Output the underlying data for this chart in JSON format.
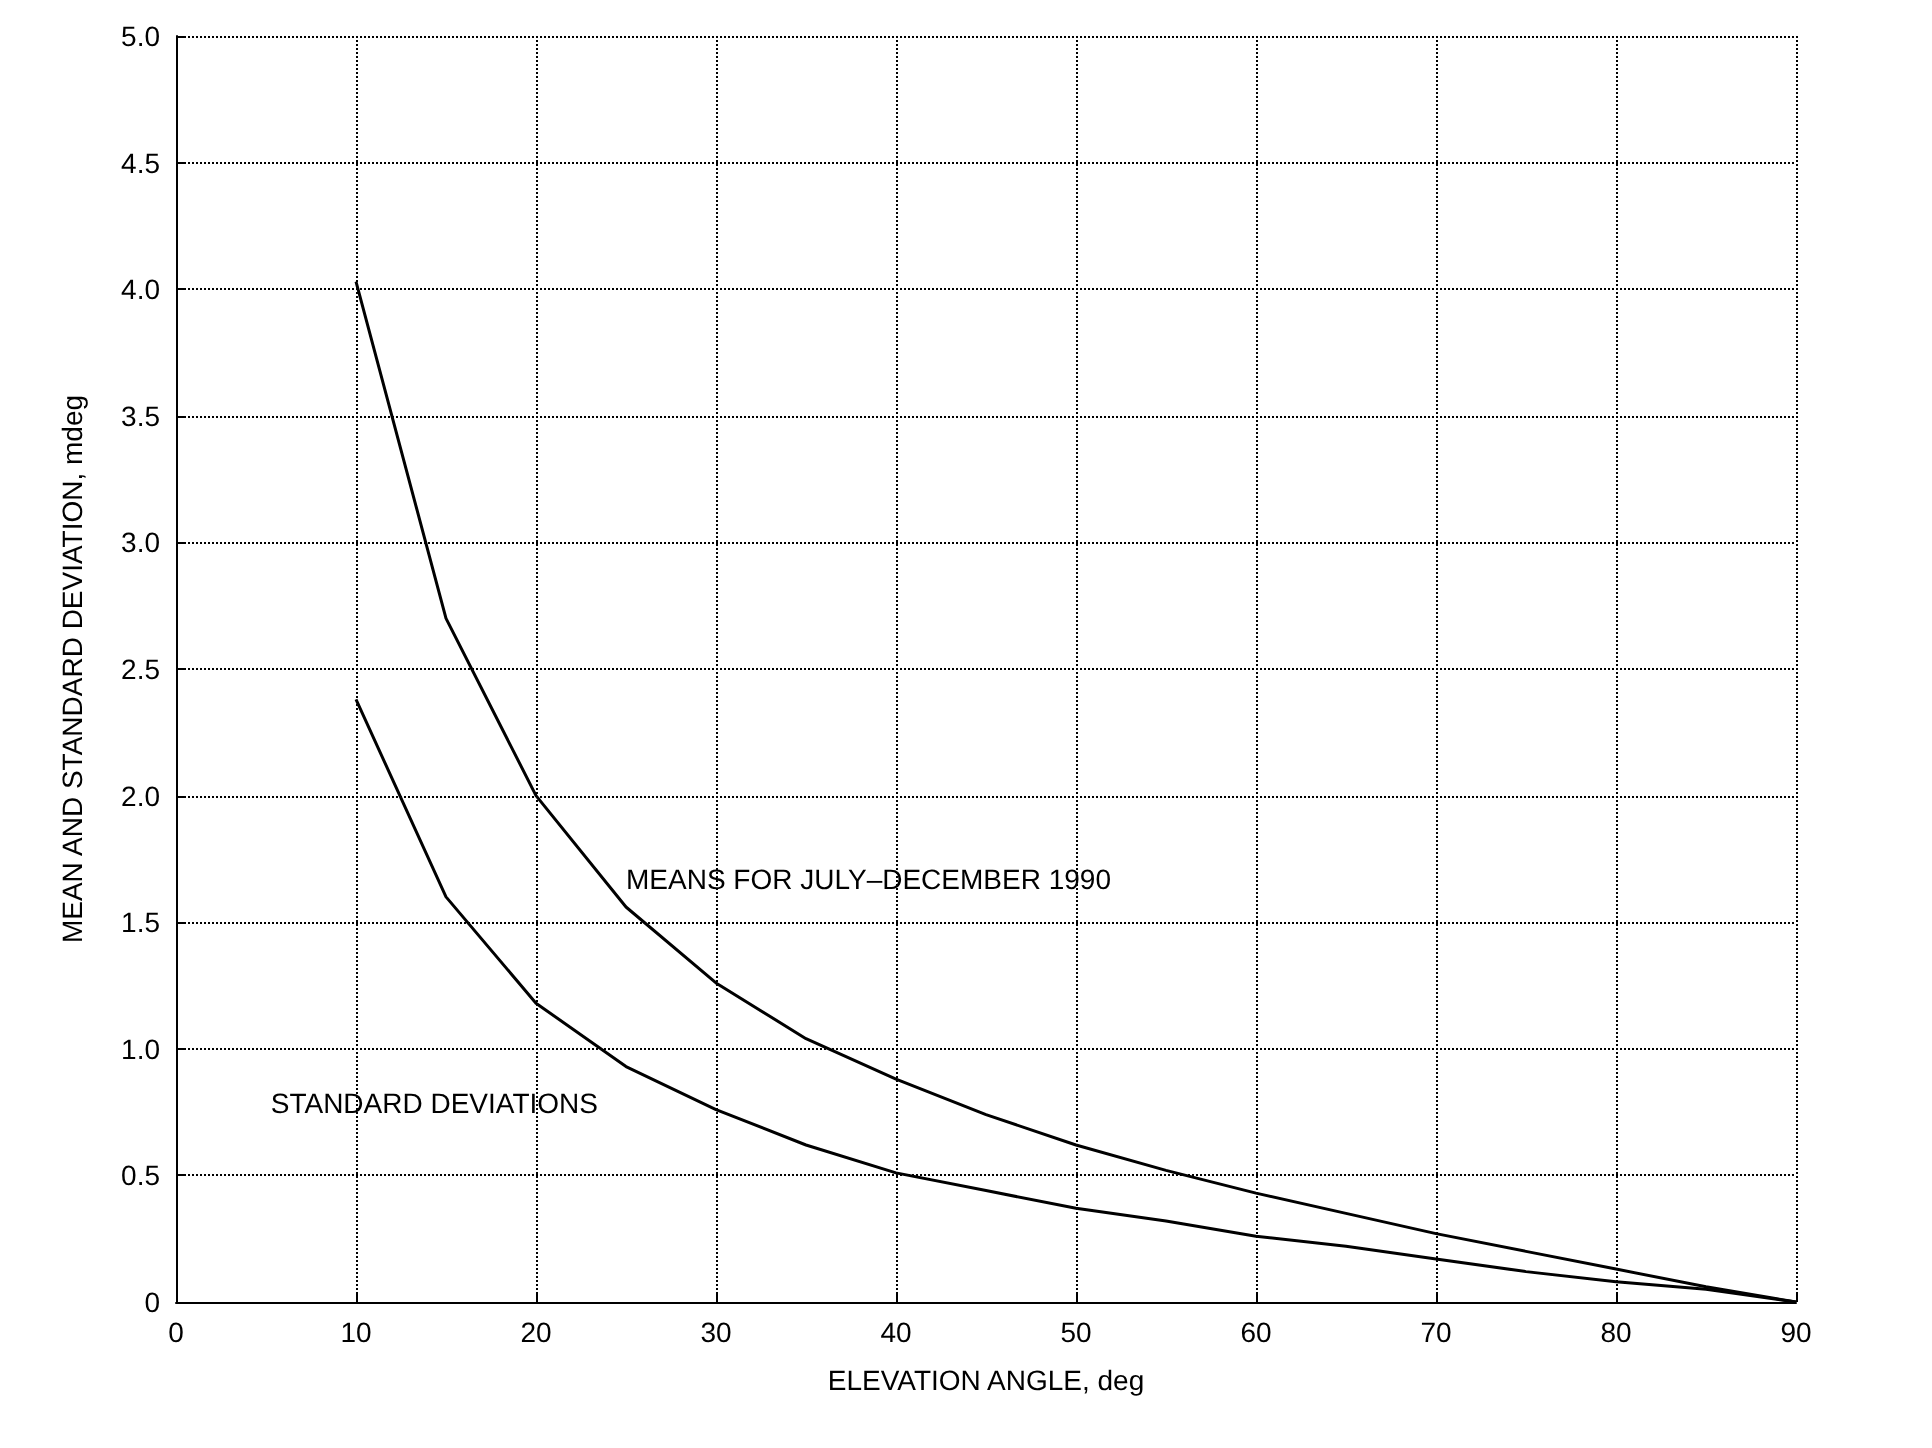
{
  "chart_data": {
    "type": "line",
    "xlabel": "ELEVATION ANGLE, deg",
    "ylabel": "MEAN AND STANDARD DEVIATION, mdeg",
    "x": [
      10,
      15,
      20,
      25,
      30,
      35,
      40,
      45,
      50,
      55,
      60,
      65,
      70,
      75,
      80,
      85,
      90
    ],
    "series": [
      {
        "name": "MEANS FOR JULY–DECEMBER 1990",
        "color": "#000000",
        "values": [
          4.03,
          2.7,
          2.0,
          1.56,
          1.26,
          1.04,
          0.88,
          0.74,
          0.62,
          0.52,
          0.43,
          0.35,
          0.27,
          0.2,
          0.13,
          0.06,
          0
        ]
      },
      {
        "name": "STANDARD DEVIATIONS",
        "color": "#000000",
        "values": [
          2.38,
          1.6,
          1.18,
          0.93,
          0.76,
          0.62,
          0.51,
          0.44,
          0.37,
          0.32,
          0.26,
          0.22,
          0.17,
          0.12,
          0.08,
          0.05,
          0
        ]
      }
    ],
    "xlim": [
      0,
      90
    ],
    "xticks": [
      0,
      10,
      20,
      30,
      40,
      50,
      60,
      70,
      80,
      90
    ],
    "ylim": [
      0,
      5
    ],
    "yticks": [
      0,
      0.5,
      {
        "value": 1,
        "label": "1.0"
      },
      1.5,
      {
        "value": 2,
        "label": "2.0"
      },
      2.5,
      {
        "value": 3,
        "label": "3.0"
      },
      3.5,
      {
        "value": 4,
        "label": "4.0"
      },
      4.5,
      {
        "value": 5,
        "label": "5.0"
      }
    ],
    "grid": true,
    "marker": "none",
    "line_style": "solid"
  }
}
